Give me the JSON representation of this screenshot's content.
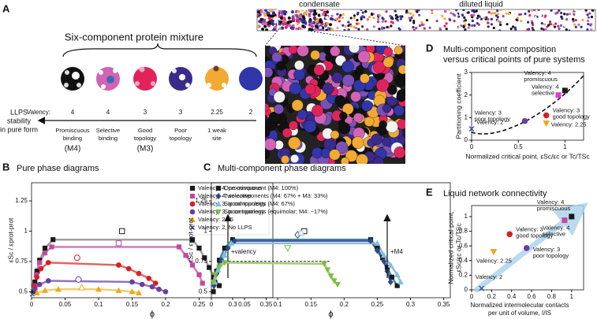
{
  "panel_a": {
    "label": "A",
    "title": "Six-component protein mixture",
    "valency_label": "Valency:",
    "axis_label": [
      "LLPS",
      "stability",
      "in pure form"
    ],
    "condensate": "condensate",
    "diluted": "diluted liquid",
    "proteins": [
      {
        "valency": "4",
        "description": [
          "Promiscuous",
          "binding"
        ],
        "model": "(M4)"
      },
      {
        "valency": "4",
        "description": [
          "Selective",
          "binding"
        ]
      },
      {
        "valency": "3",
        "description": [
          "Good",
          "topology"
        ],
        "model": "(M3)"
      },
      {
        "valency": "3",
        "description": [
          "Poor",
          "topology"
        ]
      },
      {
        "valency": "2.25",
        "description": [
          "1 weak",
          "site"
        ]
      },
      {
        "valency": "2",
        "description": []
      }
    ]
  },
  "chart_data": [
    {
      "type": "phase",
      "panel": "B",
      "title": "Pure phase diagrams",
      "x_label": "ϕ",
      "y_label": "εSc / εprot-prot",
      "annotation": "+valency",
      "xlim": [
        0,
        0.36
      ],
      "ylim": [
        0.45,
        1.4
      ],
      "xticks": [
        0,
        0.05,
        0.1,
        0.15,
        0.2,
        0.25,
        0.3,
        0.35
      ],
      "yticks": [
        0.5,
        0.75,
        1,
        1.25
      ],
      "legend": "upper right",
      "series": [
        {
          "name": "Valency: 4, promiscuous",
          "color": "#1a1a1a",
          "line_color": "#a0a0a0",
          "marker": "square",
          "x": [
            0.003,
            0.005,
            0.008,
            0.012,
            0.02,
            0.032,
            0.24,
            0.25,
            0.258,
            0.265,
            0.272,
            0.28
          ],
          "values": [
            0.5,
            0.58,
            0.67,
            0.76,
            0.86,
            0.93,
            0.93,
            0.86,
            0.78,
            0.7,
            0.62,
            0.55
          ],
          "critical": [
            0.135,
            1.0
          ]
        },
        {
          "name": "Valency: 4, selective",
          "color": "#c04a9e",
          "line_color": "#d27bbf",
          "marker": "square",
          "x": [
            0.004,
            0.007,
            0.012,
            0.02,
            0.03,
            0.22,
            0.23,
            0.24,
            0.25,
            0.255
          ],
          "values": [
            0.55,
            0.64,
            0.74,
            0.82,
            0.87,
            0.87,
            0.8,
            0.72,
            0.64,
            0.57
          ],
          "critical": [
            0.13,
            0.9
          ]
        },
        {
          "name": "Valency: 3, good topology",
          "color": "#d42027",
          "line_color": "#e06666",
          "marker": "circle",
          "x": [
            0.004,
            0.008,
            0.014,
            0.025,
            0.13,
            0.145,
            0.16,
            0.175,
            0.185
          ],
          "values": [
            0.55,
            0.62,
            0.69,
            0.74,
            0.72,
            0.69,
            0.65,
            0.61,
            0.57
          ],
          "critical": [
            0.068,
            0.78
          ]
        },
        {
          "name": "Valency: 3, poor topology",
          "color": "#6b3fa0",
          "line_color": "#8f74c0",
          "marker": "circle",
          "x": [
            0.005,
            0.012,
            0.025,
            0.15,
            0.165,
            0.18,
            0.19,
            0.2
          ],
          "values": [
            0.52,
            0.56,
            0.59,
            0.58,
            0.56,
            0.54,
            0.52,
            0.5
          ],
          "critical": [
            0.07,
            0.6
          ]
        },
        {
          "name": "Valency: 2.25",
          "color": "#f2a71c",
          "line_color": "#f0cf70",
          "marker": "triangle",
          "x": [
            0.008,
            0.02,
            0.04,
            0.1,
            0.13,
            0.15,
            0.16
          ],
          "values": [
            0.49,
            0.51,
            0.52,
            0.52,
            0.51,
            0.5,
            0.49
          ],
          "critical": [
            0.075,
            0.535
          ]
        },
        {
          "name": "Valency: 2, No LLPS",
          "color": "#3a57a6",
          "marker": "x",
          "x": [
            0.001
          ],
          "values": [
            0.48
          ]
        }
      ]
    },
    {
      "type": "phase",
      "panel": "C",
      "title": "Multi-component phase diagrams",
      "x_label": "ϕ",
      "y_label": "εSc / εprot-prot",
      "annotation": "+M4",
      "xlim": [
        0,
        0.36
      ],
      "ylim": [
        0.45,
        1.4
      ],
      "xticks": [
        0,
        0.05,
        0.1,
        0.15,
        0.2,
        0.25,
        0.3,
        0.35
      ],
      "yticks": [
        0.5,
        0.75,
        1,
        1.25
      ],
      "legend": "upper left",
      "tie_line": {
        "x": [
          0.02,
          0.18
        ],
        "y": 0.75
      },
      "series": [
        {
          "name": "One component (M4: 100%)",
          "color": "#1a1a1a",
          "line_color": "#4f8a8b",
          "marker": "square",
          "x": [
            0.003,
            0.005,
            0.008,
            0.012,
            0.02,
            0.032,
            0.24,
            0.25,
            0.258,
            0.265,
            0.272,
            0.28
          ],
          "values": [
            0.5,
            0.58,
            0.67,
            0.76,
            0.86,
            0.93,
            0.93,
            0.86,
            0.78,
            0.7,
            0.62,
            0.55
          ],
          "critical": [
            0.14,
            1.0
          ]
        },
        {
          "name": "Two components (M4: 67% + M3: 33%)",
          "color": "#2e4a8a",
          "line_color": "#3d5fa0",
          "marker": "diamond",
          "x": [
            0.004,
            0.008,
            0.015,
            0.025,
            0.035,
            0.24,
            0.25,
            0.26,
            0.265,
            0.27
          ],
          "values": [
            0.55,
            0.65,
            0.76,
            0.86,
            0.92,
            0.92,
            0.84,
            0.75,
            0.67,
            0.58
          ],
          "critical": [
            0.13,
            0.97
          ]
        },
        {
          "name": "Six components (M4: 67%)",
          "color": "#79c3df",
          "line_color": "#8fb8d8",
          "marker": "triangle",
          "x": [
            0.005,
            0.01,
            0.02,
            0.03,
            0.25,
            0.26,
            0.27,
            0.28,
            0.285
          ],
          "values": [
            0.58,
            0.68,
            0.8,
            0.9,
            0.9,
            0.8,
            0.72,
            0.64,
            0.58
          ],
          "critical": [
            0.135,
            0.99
          ]
        },
        {
          "name": "Six components (equimolar; M4: ~17%)",
          "color": "#7fbf3f",
          "line_color": "#9fcf6f",
          "marker": "triangle-down",
          "x": [
            0.003,
            0.006,
            0.012,
            0.02,
            0.17,
            0.175,
            0.18,
            0.185,
            0.19
          ],
          "values": [
            0.58,
            0.64,
            0.7,
            0.74,
            0.73,
            0.68,
            0.63,
            0.59,
            0.56
          ],
          "critical": [
            0.115,
            0.86
          ]
        }
      ]
    },
    {
      "type": "scatter",
      "panel": "D",
      "title": [
        "Multi-component composition",
        "versus critical points of pure systems"
      ],
      "x_label": "Normalized critical point, εSc/εc or Tc/TSc",
      "y_label": "Partitioning coefficient",
      "xlim": [
        0,
        1.2
      ],
      "ylim": [
        0,
        3
      ],
      "xticks": [
        0,
        0.5,
        1
      ],
      "yticks": [
        0,
        1,
        2,
        3
      ],
      "series": [
        {
          "label": [
            "Valency: 4",
            "promiscuous"
          ],
          "color": "#1a1a1a",
          "marker": "square",
          "x": [
            1.0
          ],
          "values": [
            2.2
          ]
        },
        {
          "label": [
            "Valency: 4",
            "selective"
          ],
          "color": "#d63fd0",
          "marker": "square",
          "x": [
            0.93
          ],
          "values": [
            2.0
          ]
        },
        {
          "label": [
            "Valency: 3",
            "good topology"
          ],
          "color": "#d42027",
          "marker": "circle",
          "x": [
            0.8
          ],
          "values": [
            1.1
          ]
        },
        {
          "label": [
            "Valency: 2.25"
          ],
          "color": "#f2a71c",
          "marker": "triangle-down",
          "x": [
            0.8
          ],
          "values": [
            0.75
          ]
        },
        {
          "label": [
            "Valency: 3",
            "poor topology"
          ],
          "color": "#6b3fa0",
          "marker": "circle",
          "x": [
            0.57
          ],
          "values": [
            0.85
          ]
        },
        {
          "label": [
            "Valency: 2"
          ],
          "color": "#3a57a6",
          "marker": "x",
          "x": [
            0
          ],
          "values": [
            0.5
          ]
        }
      ]
    },
    {
      "type": "scatter",
      "panel": "E",
      "title": [
        "Liquid network connectivity"
      ],
      "x_label": [
        "Normalized intermolecular contacts",
        "per unit of volume, I/IS"
      ],
      "y_label": [
        "Normalized critical point,",
        "εSc/εc or Tc/TSc"
      ],
      "xlim": [
        0,
        1.12
      ],
      "ylim": [
        0,
        1.15
      ],
      "xticks": [
        0,
        0.2,
        0.4,
        0.6,
        0.8,
        1
      ],
      "yticks": [
        0,
        0.2,
        0.4,
        0.6,
        0.8,
        1
      ],
      "series": [
        {
          "label": [
            "Valency: 4",
            "promiscuous"
          ],
          "color": "#1a1a1a",
          "marker": "square",
          "x": [
            1.0
          ],
          "values": [
            1.0
          ]
        },
        {
          "label": [
            "Valency: 4",
            "selective"
          ],
          "color": "#c04a9e",
          "marker": "square",
          "x": [
            0.93
          ],
          "values": [
            0.95
          ]
        },
        {
          "label": [
            "Valency: 3",
            "good topology"
          ],
          "color": "#d42027",
          "marker": "circle",
          "x": [
            0.38
          ],
          "values": [
            0.76
          ]
        },
        {
          "label": [
            "Valency: 3",
            "poor topology"
          ],
          "color": "#6b3fa0",
          "marker": "circle",
          "x": [
            0.55
          ],
          "values": [
            0.57
          ]
        },
        {
          "label": [
            "Valency: 2.25"
          ],
          "color": "#f2a71c",
          "marker": "triangle-down",
          "x": [
            0.22
          ],
          "values": [
            0.52
          ]
        },
        {
          "label": [
            "Valency: 2"
          ],
          "color": "#3a57a6",
          "marker": "x",
          "x": [
            0.1
          ],
          "values": [
            0.02
          ]
        }
      ]
    }
  ]
}
